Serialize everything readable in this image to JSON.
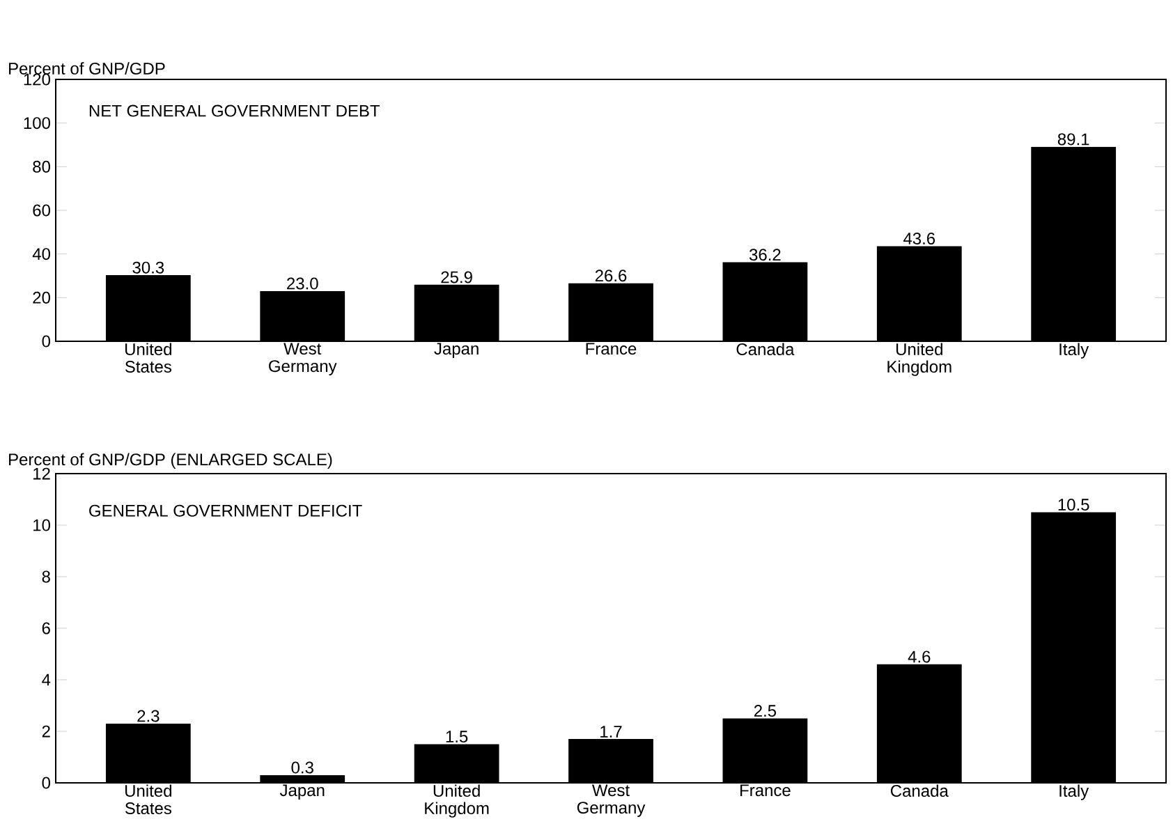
{
  "chart_data": [
    {
      "type": "bar",
      "title": "NET GENERAL GOVERNMENT DEBT",
      "ylabel": "Percent of GNP/GDP",
      "categories": [
        "United States",
        "West Germany",
        "Japan",
        "France",
        "Canada",
        "United Kingdom",
        "Italy"
      ],
      "values": [
        30.3,
        23.0,
        25.9,
        26.6,
        36.2,
        43.6,
        89.1
      ],
      "color": "#000000",
      "value_labels": [
        "30.3",
        "23.0",
        "25.9",
        "26.6",
        "36.2",
        "43.6",
        "89.1"
      ],
      "ylim": [
        0,
        120
      ],
      "yticks": [
        0,
        20,
        40,
        60,
        80,
        100,
        120
      ]
    },
    {
      "type": "bar",
      "title": "GENERAL GOVERNMENT DEFICIT",
      "ylabel": "Percent of GNP/GDP (ENLARGED SCALE)",
      "categories": [
        "United States",
        "Japan",
        "United Kingdom",
        "West Germany",
        "France",
        "Canada",
        "Italy"
      ],
      "values": [
        2.3,
        0.3,
        1.5,
        1.7,
        2.5,
        4.6,
        10.5
      ],
      "color": "#000000",
      "value_labels": [
        "2.3",
        "0.3",
        "1.5",
        "1.7",
        "2.5",
        "4.6",
        "10.5"
      ],
      "ylim": [
        0,
        12
      ],
      "yticks": [
        0,
        2,
        4,
        6,
        8,
        10,
        12
      ]
    }
  ]
}
